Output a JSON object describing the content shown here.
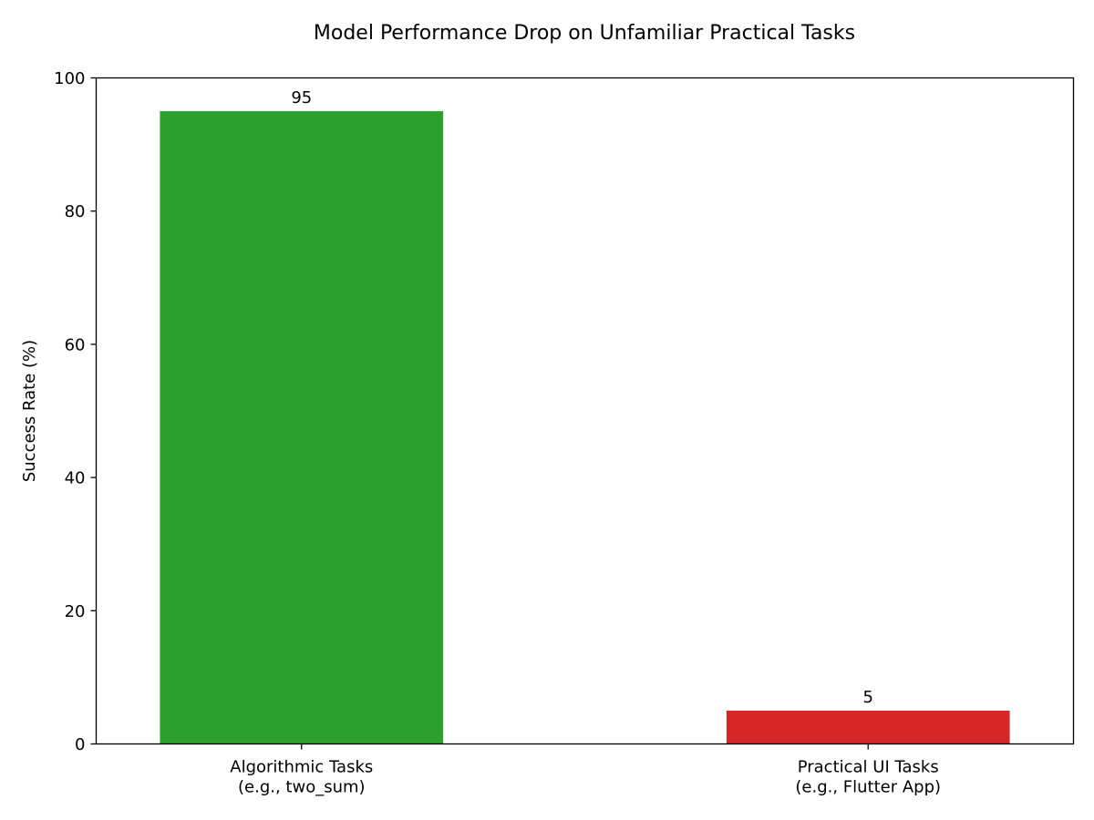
{
  "chart_data": {
    "type": "bar",
    "title": "Model Performance Drop on Unfamiliar Practical Tasks",
    "xlabel": "",
    "ylabel": "Success Rate (%)",
    "ylim": [
      0,
      100
    ],
    "yticks": [
      0,
      20,
      40,
      60,
      80,
      100
    ],
    "grid": false,
    "categories": [
      [
        "Algorithmic Tasks",
        "(e.g., two_sum)"
      ],
      [
        "Practical UI Tasks",
        "(e.g., Flutter App)"
      ]
    ],
    "values": [
      95,
      5
    ],
    "data_labels": [
      "95",
      "5"
    ],
    "colors": [
      "#2ca02c",
      "#d62728"
    ]
  }
}
